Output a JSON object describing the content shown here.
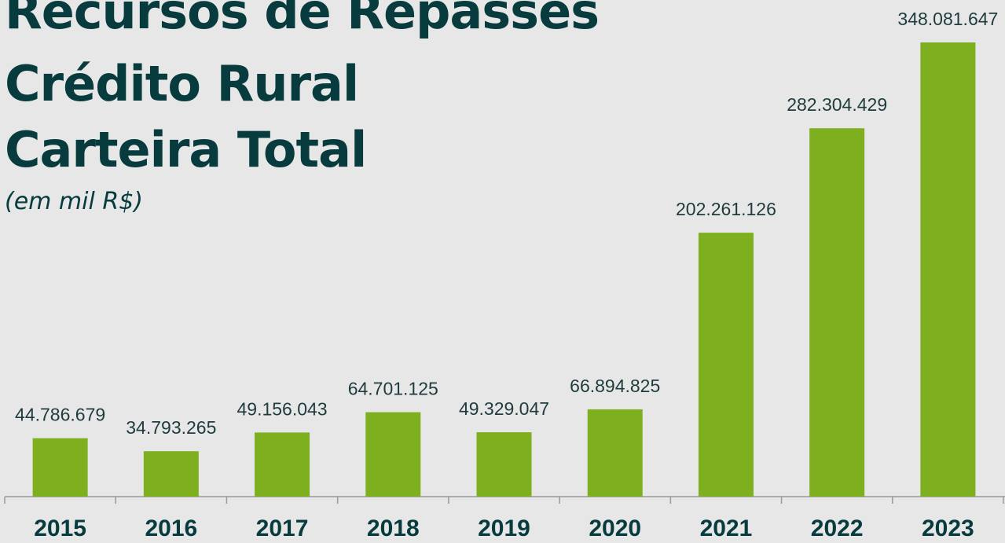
{
  "chart_data": {
    "type": "bar",
    "title": [
      "Recursos de Repasses",
      "Crédito Rural",
      "Carteira Total"
    ],
    "subtitle": "(em mil R$)",
    "categories": [
      "2015",
      "2016",
      "2017",
      "2018",
      "2019",
      "2020",
      "2021",
      "2022",
      "2023"
    ],
    "values": [
      44786679,
      34793265,
      49156043,
      64701125,
      49329047,
      66894825,
      202261126,
      282304429,
      348081647
    ],
    "value_labels": [
      "44.786.679",
      "34.793.265",
      "49.156.043",
      "64.701.125",
      "49.329.047",
      "66.894.825",
      "202.261.126",
      "282.304.429",
      "348.081.647"
    ],
    "color": "#7eaf1f"
  }
}
